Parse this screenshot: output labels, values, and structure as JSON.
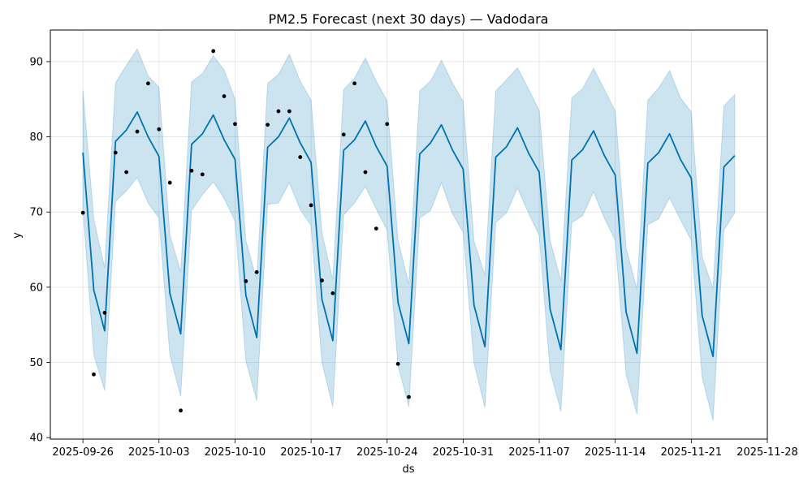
{
  "chart_data": {
    "type": "line",
    "title": "PM2.5 Forecast (next 30 days) — Vadodara",
    "xlabel": "ds",
    "ylabel": "y",
    "xlim": [
      "2025-09-23",
      "2025-11-28"
    ],
    "ylim": [
      39.8,
      94.2
    ],
    "x_ticks": [
      "2025-09-26",
      "2025-10-03",
      "2025-10-10",
      "2025-10-17",
      "2025-10-24",
      "2025-10-31",
      "2025-11-07",
      "2025-11-14",
      "2025-11-21",
      "2025-11-28"
    ],
    "y_ticks": [
      40,
      50,
      60,
      70,
      80,
      90
    ],
    "grid": true,
    "colors": {
      "forecast_line": "#0072B2",
      "interval_fill": "#0072B2",
      "observed_points": "#000000"
    },
    "observed": {
      "x": [
        "2025-09-26",
        "2025-09-27",
        "2025-09-28",
        "2025-09-29",
        "2025-09-30",
        "2025-10-01",
        "2025-10-02",
        "2025-10-03",
        "2025-10-04",
        "2025-10-05",
        "2025-10-06",
        "2025-10-07",
        "2025-10-08",
        "2025-10-09",
        "2025-10-10",
        "2025-10-11",
        "2025-10-12",
        "2025-10-13",
        "2025-10-14",
        "2025-10-15",
        "2025-10-16",
        "2025-10-17",
        "2025-10-18",
        "2025-10-19",
        "2025-10-20",
        "2025-10-21",
        "2025-10-22",
        "2025-10-23",
        "2025-10-24",
        "2025-10-25",
        "2025-10-26"
      ],
      "y": [
        69.9,
        48.4,
        56.6,
        77.9,
        75.3,
        80.7,
        87.1,
        81.0,
        73.9,
        43.6,
        75.5,
        75.0,
        91.4,
        85.4,
        81.7,
        60.8,
        62.0,
        81.6,
        83.4,
        83.4,
        77.3,
        70.9,
        60.9,
        59.2,
        80.3,
        87.1,
        75.3,
        67.8,
        81.7,
        49.8,
        45.4
      ]
    },
    "forecast": {
      "x": [
        "2025-09-26",
        "2025-09-27",
        "2025-09-28",
        "2025-09-29",
        "2025-09-30",
        "2025-10-01",
        "2025-10-02",
        "2025-10-03",
        "2025-10-04",
        "2025-10-05",
        "2025-10-06",
        "2025-10-07",
        "2025-10-08",
        "2025-10-09",
        "2025-10-10",
        "2025-10-11",
        "2025-10-12",
        "2025-10-13",
        "2025-10-14",
        "2025-10-15",
        "2025-10-16",
        "2025-10-17",
        "2025-10-18",
        "2025-10-19",
        "2025-10-20",
        "2025-10-21",
        "2025-10-22",
        "2025-10-23",
        "2025-10-24",
        "2025-10-25",
        "2025-10-26",
        "2025-10-27",
        "2025-10-28",
        "2025-10-29",
        "2025-10-30",
        "2025-10-31",
        "2025-11-01",
        "2025-11-02",
        "2025-11-03",
        "2025-11-04",
        "2025-11-05",
        "2025-11-06",
        "2025-11-07",
        "2025-11-08",
        "2025-11-09",
        "2025-11-10",
        "2025-11-11",
        "2025-11-12",
        "2025-11-13",
        "2025-11-14",
        "2025-11-15",
        "2025-11-16",
        "2025-11-17",
        "2025-11-18",
        "2025-11-19",
        "2025-11-20",
        "2025-11-21",
        "2025-11-22",
        "2025-11-23",
        "2025-11-24",
        "2025-11-25"
      ],
      "yhat": [
        77.9,
        59.6,
        54.2,
        79.4,
        80.9,
        83.3,
        80.0,
        77.4,
        59.2,
        53.8,
        79.0,
        80.4,
        82.9,
        79.6,
        77.0,
        58.9,
        53.3,
        78.6,
        80.0,
        82.5,
        79.2,
        76.6,
        58.4,
        52.9,
        78.2,
        79.6,
        82.1,
        78.7,
        76.1,
        58.0,
        52.5,
        77.7,
        79.2,
        81.6,
        78.3,
        75.7,
        57.6,
        52.1,
        77.3,
        78.7,
        81.2,
        77.9,
        75.3,
        57.1,
        51.7,
        76.9,
        78.3,
        80.8,
        77.5,
        74.9,
        56.7,
        51.2,
        76.5,
        77.9,
        80.4,
        77.0,
        74.5,
        56.2,
        50.8,
        76.0,
        77.5
      ],
      "yhat_upper": [
        86.2,
        69.0,
        62.6,
        87.2,
        89.5,
        91.7,
        88.1,
        86.6,
        67.0,
        62.0,
        87.3,
        88.4,
        90.8,
        88.9,
        85.0,
        66.2,
        61.0,
        87.1,
        88.3,
        91.0,
        87.4,
        84.9,
        67.2,
        61.0,
        86.3,
        87.8,
        90.5,
        87.4,
        84.8,
        66.3,
        60.4,
        86.1,
        87.4,
        90.2,
        87.2,
        84.7,
        66.1,
        61.6,
        86.1,
        87.6,
        89.2,
        86.4,
        83.5,
        66.2,
        60.9,
        85.2,
        86.4,
        89.1,
        86.3,
        83.4,
        65.2,
        59.7,
        84.9,
        86.5,
        88.8,
        85.2,
        83.3,
        64.0,
        59.8,
        84.1,
        85.6
      ],
      "yhat_lower": [
        70.4,
        51.0,
        46.3,
        71.4,
        72.8,
        74.6,
        71.2,
        69.2,
        51.0,
        45.5,
        70.2,
        72.3,
        74.0,
        71.8,
        68.8,
        50.2,
        44.9,
        71.0,
        71.2,
        73.9,
        70.3,
        68.2,
        50.0,
        44.1,
        69.6,
        71.2,
        73.4,
        70.4,
        67.6,
        49.6,
        44.1,
        69.2,
        70.2,
        73.9,
        69.8,
        67.3,
        49.9,
        44.0,
        68.6,
        69.9,
        73.2,
        69.9,
        66.9,
        48.9,
        43.5,
        68.6,
        69.5,
        72.7,
        69.2,
        66.2,
        48.4,
        43.1,
        68.3,
        69.1,
        71.9,
        69.0,
        66.2,
        48.0,
        42.3,
        67.6,
        69.9
      ]
    }
  }
}
